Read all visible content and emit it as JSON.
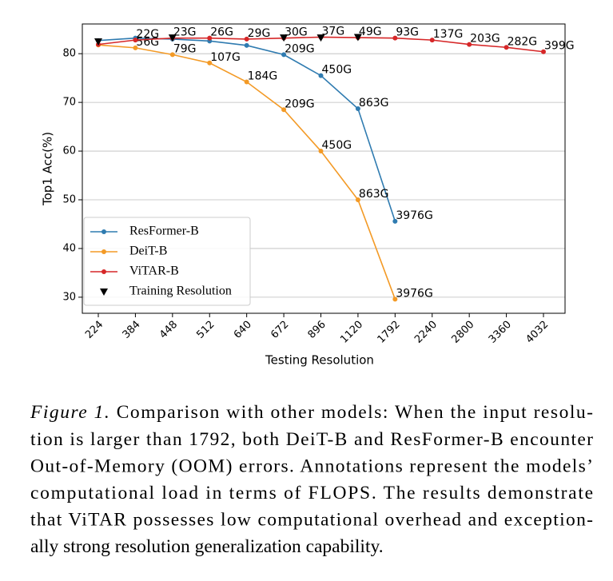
{
  "chart_data": {
    "type": "line",
    "xlabel": "Testing Resolution",
    "ylabel": "Top1 Acc(%)",
    "categories": [
      "224",
      "384",
      "448",
      "512",
      "640",
      "672",
      "896",
      "1120",
      "1792",
      "2240",
      "2800",
      "3360",
      "4032"
    ],
    "ylim": [
      26.7,
      86.1
    ],
    "yticks": [
      30,
      40,
      50,
      60,
      70,
      80
    ],
    "grid": true,
    "legend": "lower left",
    "series": [
      {
        "name": "ResFormer-B",
        "color": "#2f7bb0",
        "marker": "circle",
        "values": [
          82.7,
          83.2,
          83.0,
          82.6,
          81.7,
          79.8,
          75.5,
          68.7,
          45.6,
          null,
          null,
          null,
          null
        ],
        "annotations": [
          null,
          null,
          null,
          null,
          null,
          "209G",
          "450G",
          "863G",
          "3976G",
          null,
          null,
          null,
          null
        ]
      },
      {
        "name": "DeiT-B",
        "color": "#f39a26",
        "marker": "circle",
        "values": [
          81.8,
          81.2,
          79.8,
          78.1,
          74.2,
          68.5,
          60.0,
          50.0,
          29.6,
          null,
          null,
          null,
          null
        ],
        "annotations": [
          null,
          "56G",
          "79G",
          "107G",
          "184G",
          "209G",
          "450G",
          "863G",
          "3976G",
          null,
          null,
          null,
          null
        ]
      },
      {
        "name": "ViTAR-B",
        "color": "#d62728",
        "marker": "circle",
        "values": [
          81.9,
          82.8,
          83.2,
          83.2,
          83.0,
          83.2,
          83.4,
          83.3,
          83.2,
          82.8,
          81.9,
          81.3,
          80.4
        ],
        "annotations": [
          null,
          "22G",
          "23G",
          "26G",
          "29G",
          "30G",
          "37G",
          "49G",
          "93G",
          "137G",
          "203G",
          "282G",
          "399G"
        ]
      },
      {
        "name": "Training Resolution",
        "color": "#000000",
        "marker": "triangle",
        "values": [
          82.5,
          null,
          83.3,
          null,
          null,
          83.3,
          83.3,
          83.4,
          null,
          null,
          null,
          null,
          null
        ]
      }
    ]
  },
  "caption": {
    "label": "Figure 1.",
    "lines": [
      " Comparison with other models: When the input resolu-",
      "tion is larger than 1792, both DeiT-B and ResFormer-B encounter",
      "Out-of-Memory (OOM) errors. Annotations represent the models’",
      "computational load in terms of FLOPS. The results demonstrate",
      "that ViTAR possesses low computational overhead and exception-",
      "ally strong resolution generalization capability."
    ]
  }
}
